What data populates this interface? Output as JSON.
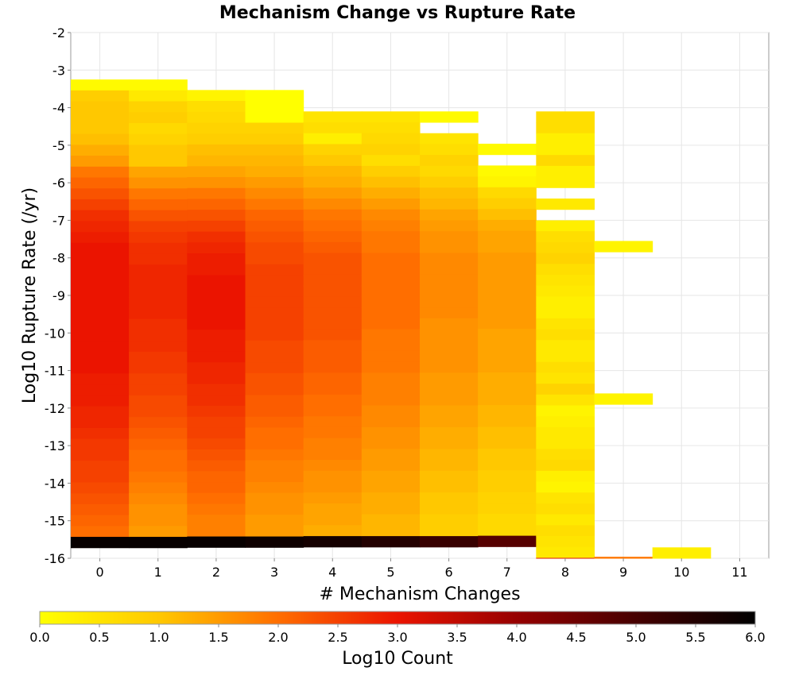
{
  "chart_data": {
    "type": "heatmap",
    "title": "Mechanism Change vs Rupture Rate",
    "xlabel": "# Mechanism Changes",
    "ylabel": "Log10 Rupture Rate (/yr)",
    "colorbar_label": "Log10 Count",
    "x_ticks": [
      "0",
      "1",
      "2",
      "3",
      "4",
      "5",
      "6",
      "7",
      "8",
      "9",
      "10",
      "11"
    ],
    "y_ticks": [
      "-2",
      "-3",
      "-4",
      "-5",
      "-6",
      "-7",
      "-8",
      "-9",
      "-10",
      "-11",
      "-12",
      "-13",
      "-14",
      "-15",
      "-16"
    ],
    "colorbar_ticks": [
      "0.0",
      "0.5",
      "1.0",
      "1.5",
      "2.0",
      "2.5",
      "3.0",
      "3.5",
      "4.0",
      "4.5",
      "5.0",
      "5.5",
      "6.0"
    ],
    "xlim": [
      -0.5,
      11.5
    ],
    "ylim": [
      -16,
      -2
    ],
    "bin_width_y": 0.29,
    "zlim": [
      0,
      6
    ],
    "columns": [
      {
        "x": 0,
        "y_top": -3.25,
        "values": [
          0.1,
          0.9,
          1.0,
          1.0,
          1.0,
          1.1,
          1.3,
          1.5,
          1.9,
          2.1,
          2.3,
          2.5,
          2.7,
          2.8,
          2.9,
          3.0,
          3.0,
          3.0,
          3.0,
          3.0,
          3.0,
          3.0,
          3.0,
          3.0,
          3.0,
          3.0,
          3.0,
          2.9,
          2.9,
          2.9,
          2.8,
          2.8,
          2.7,
          2.6,
          2.6,
          2.5,
          2.5,
          2.4,
          2.3,
          2.2,
          2.1,
          2.0,
          5.9
        ]
      },
      {
        "x": 1,
        "y_top": -3.25,
        "values": [
          0.1,
          0.4,
          0.8,
          0.9,
          0.7,
          0.8,
          1.0,
          1.0,
          1.4,
          1.6,
          1.9,
          2.1,
          2.3,
          2.5,
          2.6,
          2.7,
          2.7,
          2.8,
          2.8,
          2.8,
          2.8,
          2.8,
          2.7,
          2.7,
          2.7,
          2.6,
          2.6,
          2.5,
          2.5,
          2.4,
          2.4,
          2.3,
          2.2,
          2.1,
          2.0,
          2.0,
          1.9,
          1.8,
          1.7,
          1.6,
          1.6,
          1.5,
          5.9
        ]
      },
      {
        "x": 2,
        "y_top": -3.53,
        "values": [
          0.2,
          0.6,
          0.7,
          0.8,
          0.9,
          1.1,
          1.2,
          1.4,
          1.6,
          1.9,
          2.1,
          2.3,
          2.5,
          2.7,
          2.8,
          2.9,
          2.9,
          3.0,
          3.0,
          3.0,
          3.0,
          3.0,
          2.9,
          2.9,
          2.9,
          2.8,
          2.8,
          2.7,
          2.7,
          2.6,
          2.5,
          2.5,
          2.4,
          2.3,
          2.2,
          2.1,
          2.1,
          2.0,
          1.9,
          1.8,
          1.8,
          5.9
        ]
      },
      {
        "x": 3,
        "y_top": -3.53,
        "values": [
          0.0,
          0.0,
          0.0,
          0.8,
          0.9,
          1.1,
          1.2,
          1.3,
          1.5,
          1.7,
          1.9,
          2.1,
          2.2,
          2.3,
          2.4,
          2.4,
          2.5,
          2.5,
          2.5,
          2.5,
          2.5,
          2.5,
          2.5,
          2.4,
          2.4,
          2.4,
          2.3,
          2.3,
          2.2,
          2.2,
          2.1,
          2.0,
          2.0,
          1.9,
          1.8,
          1.8,
          1.7,
          1.6,
          1.6,
          1.5,
          1.5,
          5.8
        ]
      },
      {
        "x": 4,
        "y_top": -4.1,
        "values": [
          0.5,
          0.6,
          0.3,
          0.8,
          1.0,
          1.2,
          1.3,
          1.5,
          1.7,
          1.9,
          2.0,
          2.1,
          2.2,
          2.3,
          2.3,
          2.3,
          2.3,
          2.3,
          2.3,
          2.3,
          2.3,
          2.2,
          2.2,
          2.2,
          2.1,
          2.1,
          2.0,
          2.0,
          1.9,
          1.9,
          1.8,
          1.8,
          1.7,
          1.6,
          1.6,
          1.5,
          1.4,
          1.4,
          1.3,
          5.7
        ]
      },
      {
        "x": 5,
        "y_top": -4.1,
        "values": [
          0.5,
          0.6,
          0.7,
          0.8,
          0.6,
          0.9,
          1.1,
          1.3,
          1.5,
          1.7,
          1.8,
          1.9,
          1.9,
          2.0,
          2.0,
          2.0,
          2.0,
          2.0,
          2.0,
          2.0,
          1.9,
          1.9,
          1.9,
          1.9,
          1.8,
          1.8,
          1.8,
          1.7,
          1.7,
          1.6,
          1.6,
          1.5,
          1.5,
          1.4,
          1.4,
          1.3,
          1.3,
          1.2,
          1.2,
          5.5
        ]
      },
      {
        "x": 6,
        "y_top": -4.1,
        "values": [
          0.1,
          null,
          0.5,
          0.6,
          0.8,
          0.7,
          0.9,
          1.1,
          1.2,
          1.4,
          1.5,
          1.6,
          1.6,
          1.7,
          1.7,
          1.7,
          1.7,
          1.7,
          1.7,
          1.6,
          1.6,
          1.6,
          1.6,
          1.6,
          1.5,
          1.5,
          1.5,
          1.4,
          1.4,
          1.3,
          1.3,
          1.2,
          1.2,
          1.1,
          1.1,
          1.0,
          1.0,
          0.9,
          0.9,
          5.2
        ]
      },
      {
        "x": 7,
        "y_top": -4.96,
        "values": [
          0.1,
          null,
          0.1,
          0.2,
          0.7,
          0.9,
          1.1,
          1.3,
          1.4,
          1.4,
          1.5,
          1.5,
          1.5,
          1.5,
          1.5,
          1.5,
          1.5,
          1.4,
          1.4,
          1.4,
          1.4,
          1.3,
          1.3,
          1.3,
          1.2,
          1.2,
          1.1,
          1.1,
          1.0,
          1.0,
          0.9,
          0.9,
          0.8,
          0.8,
          0.7,
          0.7,
          4.8
        ]
      },
      {
        "x": 8,
        "y_top": -4.1,
        "values": [
          0.6,
          0.6,
          0.3,
          0.3,
          0.7,
          0.3,
          0.3,
          null,
          0.4,
          null,
          0.3,
          0.6,
          0.7,
          0.8,
          0.6,
          0.5,
          0.4,
          0.3,
          0.3,
          0.5,
          0.6,
          0.4,
          0.4,
          0.6,
          0.5,
          0.8,
          0.5,
          0.2,
          0.3,
          0.4,
          0.4,
          0.6,
          0.7,
          0.3,
          0.2,
          0.5,
          0.6,
          0.4,
          0.6,
          0.5,
          0.4,
          3.2
        ]
      },
      {
        "x": 9,
        "y_top": -7.55,
        "values": [
          0.2,
          null,
          null,
          null,
          null,
          null,
          null,
          null,
          null,
          null,
          null,
          null,
          null,
          null,
          0.2,
          null,
          null,
          null,
          null,
          null,
          null,
          null,
          null,
          null,
          null,
          null,
          null,
          null,
          null,
          1.9
        ]
      },
      {
        "x": 10,
        "y_top": -15.71,
        "values": [
          0.3
        ]
      }
    ]
  }
}
